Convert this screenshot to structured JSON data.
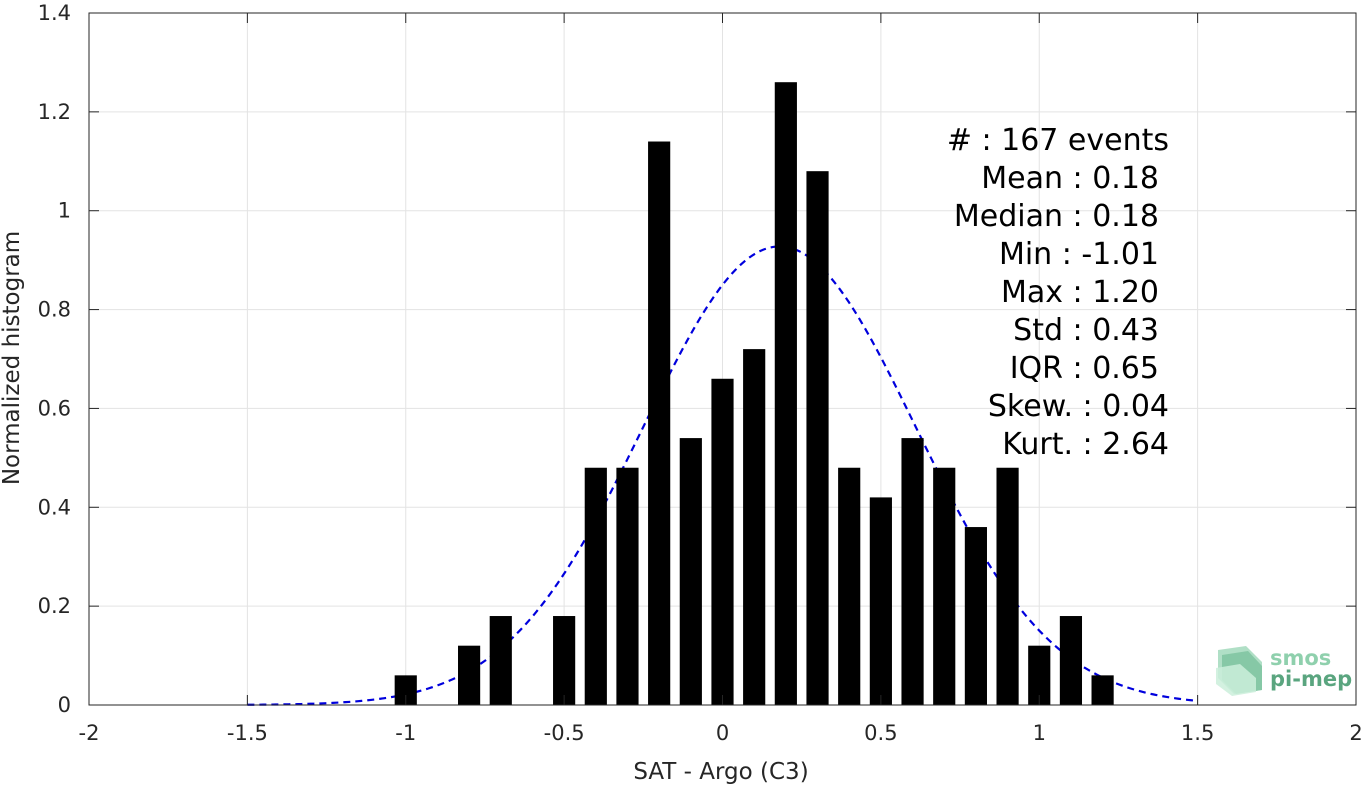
{
  "chart_data": {
    "type": "bar",
    "xlabel": "SAT - Argo (C3)",
    "ylabel": "Normalized histogram",
    "xlim": [
      -2,
      2
    ],
    "ylim": [
      0,
      1.4
    ],
    "xticks": [
      -2,
      -1.5,
      -1,
      -0.5,
      0,
      0.5,
      1,
      1.5,
      2
    ],
    "xtick_labels": [
      "-2",
      "-1.5",
      "-1",
      "-0.5",
      "0",
      "0.5",
      "1",
      "1.5",
      "2"
    ],
    "yticks": [
      0,
      0.2,
      0.4,
      0.6,
      0.8,
      1,
      1.2,
      1.4
    ],
    "ytick_labels": [
      "0",
      "0.2",
      "0.4",
      "0.6",
      "0.8",
      "1",
      "1.2",
      "1.4"
    ],
    "grid": true,
    "bar_width": 0.07,
    "bar_color": "#000000",
    "bins": [
      {
        "x": -1.0,
        "value": 0.06
      },
      {
        "x": -0.8,
        "value": 0.12
      },
      {
        "x": -0.7,
        "value": 0.18
      },
      {
        "x": -0.5,
        "value": 0.18
      },
      {
        "x": -0.4,
        "value": 0.48
      },
      {
        "x": -0.3,
        "value": 0.48
      },
      {
        "x": -0.2,
        "value": 1.14
      },
      {
        "x": -0.1,
        "value": 0.54
      },
      {
        "x": 0.0,
        "value": 0.66
      },
      {
        "x": 0.1,
        "value": 0.72
      },
      {
        "x": 0.2,
        "value": 1.26
      },
      {
        "x": 0.3,
        "value": 1.08
      },
      {
        "x": 0.4,
        "value": 0.48
      },
      {
        "x": 0.5,
        "value": 0.42
      },
      {
        "x": 0.6,
        "value": 0.54
      },
      {
        "x": 0.7,
        "value": 0.48
      },
      {
        "x": 0.8,
        "value": 0.36
      },
      {
        "x": 0.9,
        "value": 0.48
      },
      {
        "x": 1.0,
        "value": 0.12
      },
      {
        "x": 1.1,
        "value": 0.18
      },
      {
        "x": 1.2,
        "value": 0.06
      }
    ],
    "fit_curve": {
      "style": "dashed",
      "color": "#0000dd",
      "mean": 0.18,
      "std": 0.43,
      "x_range": [
        -1.5,
        1.5
      ]
    },
    "stats_lines": [
      "#  : 167 events",
      "Mean : 0.18",
      "Median : 0.18",
      "Min : -1.01",
      "Max : 1.20",
      "Std : 0.43",
      "IQR : 0.65",
      "Skew. : 0.04",
      "Kurt. : 2.64"
    ]
  },
  "logo": {
    "line1": "smos",
    "line2": "pi-mep",
    "color_light": "#8fd0ad",
    "color_dark": "#3f8f6a"
  }
}
